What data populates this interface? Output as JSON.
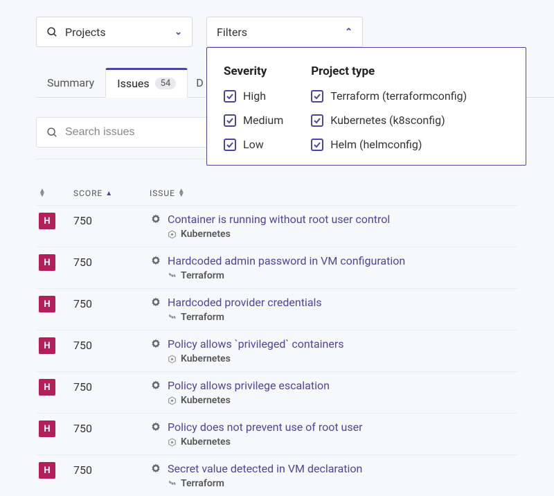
{
  "projects_dropdown": {
    "label": "Projects"
  },
  "filters_dropdown": {
    "label": "Filters"
  },
  "tabs": {
    "summary": "Summary",
    "issues": "Issues",
    "issues_count": "54",
    "partial": "D"
  },
  "search": {
    "placeholder": "Search issues"
  },
  "columns": {
    "score": "SCORE",
    "issue": "ISSUE"
  },
  "filters_panel": {
    "severity_title": "Severity",
    "severity": {
      "high": "High",
      "medium": "Medium",
      "low": "Low"
    },
    "project_type_title": "Project type",
    "project_type": {
      "terraform": "Terraform (terraformconfig)",
      "kubernetes": "Kubernetes (k8sconfig)",
      "helm": "Helm (helmconfig)"
    }
  },
  "rows": [
    {
      "sev": "H",
      "score": "750",
      "title": "Container is running without root user control",
      "type": "Kubernetes"
    },
    {
      "sev": "H",
      "score": "750",
      "title": "Hardcoded admin password in VM configuration",
      "type": "Terraform"
    },
    {
      "sev": "H",
      "score": "750",
      "title": "Hardcoded provider credentials",
      "type": "Terraform"
    },
    {
      "sev": "H",
      "score": "750",
      "title": "Policy allows `privileged` containers",
      "type": "Kubernetes"
    },
    {
      "sev": "H",
      "score": "750",
      "title": "Policy allows privilege escalation",
      "type": "Kubernetes"
    },
    {
      "sev": "H",
      "score": "750",
      "title": "Policy does not prevent use of root user",
      "type": "Kubernetes"
    },
    {
      "sev": "H",
      "score": "750",
      "title": "Secret value detected in VM declaration",
      "type": "Terraform"
    }
  ],
  "colors": {
    "accent": "#4b45a1",
    "sev_high_bg": "#b31e5b",
    "background": "#f7f8fb"
  }
}
